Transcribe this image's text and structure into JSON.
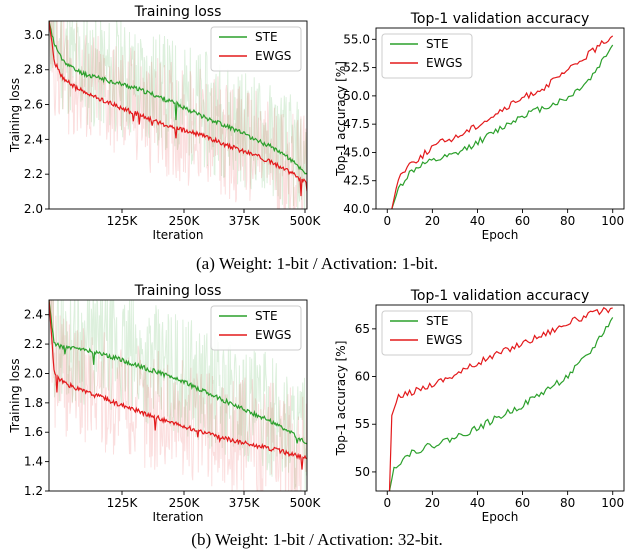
{
  "chart_data": [
    {
      "type": "line",
      "title": "Training loss",
      "xlabel": "Iteration",
      "ylabel": "Training loss",
      "x_ticks": [
        "125K",
        "250K",
        "375K",
        "500K"
      ],
      "y_ticks": [
        "2.0",
        "2.2",
        "2.4",
        "2.6",
        "2.8",
        "3.0"
      ],
      "xlim": [
        0,
        500000
      ],
      "ylim": [
        2.0,
        3.08
      ],
      "legend": "top-right",
      "series": [
        {
          "name": "STE",
          "color": "#2ca02c",
          "x": [
            0,
            10000,
            25000,
            50000,
            75000,
            100000,
            125000,
            150000,
            200000,
            250000,
            300000,
            350000,
            400000,
            450000,
            500000
          ],
          "values": [
            3.08,
            2.95,
            2.86,
            2.8,
            2.77,
            2.75,
            2.73,
            2.71,
            2.66,
            2.6,
            2.53,
            2.47,
            2.4,
            2.33,
            2.2
          ]
        },
        {
          "name": "EWGS",
          "color": "#e31a1c",
          "x": [
            0,
            10000,
            25000,
            50000,
            75000,
            100000,
            125000,
            150000,
            200000,
            250000,
            300000,
            350000,
            400000,
            450000,
            500000
          ],
          "values": [
            3.08,
            2.85,
            2.76,
            2.7,
            2.66,
            2.63,
            2.6,
            2.57,
            2.51,
            2.46,
            2.42,
            2.36,
            2.31,
            2.24,
            2.15
          ]
        }
      ]
    },
    {
      "type": "line",
      "title": "Top-1 validation accuracy",
      "xlabel": "Epoch",
      "ylabel": "Top-1 accuracy [%]",
      "x_ticks": [
        "0",
        "20",
        "40",
        "60",
        "80",
        "100"
      ],
      "y_ticks": [
        "40.0",
        "42.5",
        "45.0",
        "47.5",
        "50.0",
        "52.5",
        "55.0"
      ],
      "xlim": [
        -5,
        105
      ],
      "ylim": [
        40,
        56
      ],
      "legend": "top-left",
      "series": [
        {
          "name": "STE",
          "color": "#2ca02c",
          "x": [
            2,
            5,
            10,
            15,
            20,
            25,
            30,
            40,
            50,
            60,
            70,
            80,
            90,
            100
          ],
          "values": [
            40.0,
            41.8,
            43.2,
            43.9,
            44.2,
            44.5,
            44.8,
            45.9,
            47.1,
            48.3,
            49.0,
            49.8,
            51.5,
            54.5
          ]
        },
        {
          "name": "EWGS",
          "color": "#e31a1c",
          "x": [
            2,
            5,
            10,
            15,
            20,
            25,
            30,
            40,
            50,
            60,
            70,
            80,
            90,
            100
          ],
          "values": [
            40.0,
            42.8,
            44.0,
            44.6,
            45.5,
            46.0,
            46.3,
            47.4,
            48.6,
            49.8,
            50.8,
            52.2,
            53.8,
            55.3
          ]
        }
      ]
    },
    {
      "type": "line",
      "title": "Training loss",
      "xlabel": "Iteration",
      "ylabel": "Training loss",
      "x_ticks": [
        "125K",
        "250K",
        "375K",
        "500K"
      ],
      "y_ticks": [
        "1.2",
        "1.4",
        "1.6",
        "1.8",
        "2.0",
        "2.2",
        "2.4"
      ],
      "xlim": [
        0,
        500000
      ],
      "ylim": [
        1.2,
        2.5
      ],
      "legend": "top-right",
      "series": [
        {
          "name": "STE",
          "color": "#2ca02c",
          "x": [
            0,
            10000,
            25000,
            50000,
            100000,
            150000,
            200000,
            250000,
            300000,
            350000,
            400000,
            450000,
            500000
          ],
          "values": [
            2.5,
            2.2,
            2.18,
            2.17,
            2.14,
            2.08,
            2.02,
            1.96,
            1.88,
            1.8,
            1.72,
            1.64,
            1.52
          ]
        },
        {
          "name": "EWGS",
          "color": "#e31a1c",
          "x": [
            0,
            10000,
            25000,
            50000,
            100000,
            150000,
            200000,
            250000,
            300000,
            350000,
            400000,
            450000,
            500000
          ],
          "values": [
            2.5,
            2.0,
            1.95,
            1.9,
            1.84,
            1.77,
            1.71,
            1.65,
            1.6,
            1.55,
            1.51,
            1.47,
            1.42
          ]
        }
      ]
    },
    {
      "type": "line",
      "title": "Top-1 validation accuracy",
      "xlabel": "Epoch",
      "ylabel": "Top-1 accuracy [%]",
      "x_ticks": [
        "0",
        "20",
        "40",
        "60",
        "80",
        "100"
      ],
      "y_ticks": [
        "50",
        "55",
        "60",
        "65"
      ],
      "xlim": [
        -5,
        105
      ],
      "ylim": [
        48,
        67.5
      ],
      "legend": "top-left",
      "series": [
        {
          "name": "STE",
          "color": "#2ca02c",
          "x": [
            1,
            3,
            10,
            20,
            30,
            40,
            50,
            60,
            70,
            80,
            90,
            100
          ],
          "values": [
            48.0,
            50.5,
            52.0,
            52.8,
            53.6,
            54.6,
            55.8,
            57.0,
            58.5,
            60.0,
            62.5,
            66.2
          ]
        },
        {
          "name": "EWGS",
          "color": "#e31a1c",
          "x": [
            1,
            2,
            5,
            10,
            20,
            30,
            40,
            50,
            60,
            70,
            80,
            90,
            100
          ],
          "values": [
            48.0,
            56.0,
            57.8,
            58.3,
            59.2,
            60.2,
            61.4,
            62.5,
            63.5,
            64.5,
            65.6,
            66.5,
            67.2
          ]
        }
      ]
    }
  ],
  "captions": {
    "a": "(a) Weight: 1-bit / Activation: 1-bit.",
    "b": "(b) Weight: 1-bit / Activation: 32-bit."
  }
}
